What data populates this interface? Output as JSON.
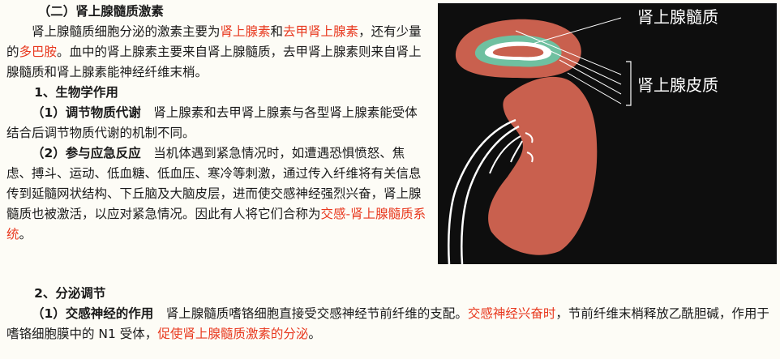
{
  "section": {
    "title": "（二）肾上腺髓质激素",
    "intro": {
      "t1": "肾上腺髓质细胞分泌的激素主要为",
      "r1": "肾上腺素",
      "t2": "和",
      "r2": "去甲肾上腺素",
      "t3": "，还有少量的",
      "r3": "多巴胺",
      "t4": "。血中的肾上腺素主要来自肾上腺髓质，去甲肾上腺素则来自肾上腺髓质和肾上腺素能神经纤维末梢。"
    }
  },
  "bio": {
    "heading": "1、生物学作用",
    "item1": {
      "head": "（1）调节物质代谢",
      "text": "　肾上腺素和去甲肾上腺素与各型肾上腺素能受体结合后调节物质代谢的机制不同。"
    },
    "item2": {
      "head": "（2）参与应急反应",
      "text": "　当机体遇到紧急情况时，如遭遇恐惧愤怒、焦虑、搏斗、运动、低血糖、低血压、寒冷等刺激，通过传入纤维将有关信息传到延髓网状结构、下丘脑及大脑皮层，进而使交感神经强烈兴奋，肾上腺髓质也被激活，以应对紧急情况。因此有人将它们合称为",
      "red": "交感-肾上腺髓质系统",
      "end": "。"
    }
  },
  "secretion": {
    "heading": "2、分泌调节",
    "item1": {
      "head": "（1）交感神经的作用",
      "t1": "　肾上腺髓质嗜铬细胞直接受交感神经节前纤维的支配。",
      "r1": "交感神经兴奋时",
      "t2": "，节前纤维末梢释放乙酰胆碱，作用于嗜铬细胞膜中的 N1 受体，",
      "r2": "促使肾上腺髓质激素的分泌",
      "t3": "。"
    }
  },
  "figure": {
    "label_medulla": "肾上腺髓质",
    "label_cortex": "肾上腺皮质",
    "colors": {
      "background": "#0e0e0e",
      "cortex": "#c9604e",
      "medulla": "#6fc0a0",
      "kidney": "#c9604e",
      "line": "#ffffff"
    }
  }
}
